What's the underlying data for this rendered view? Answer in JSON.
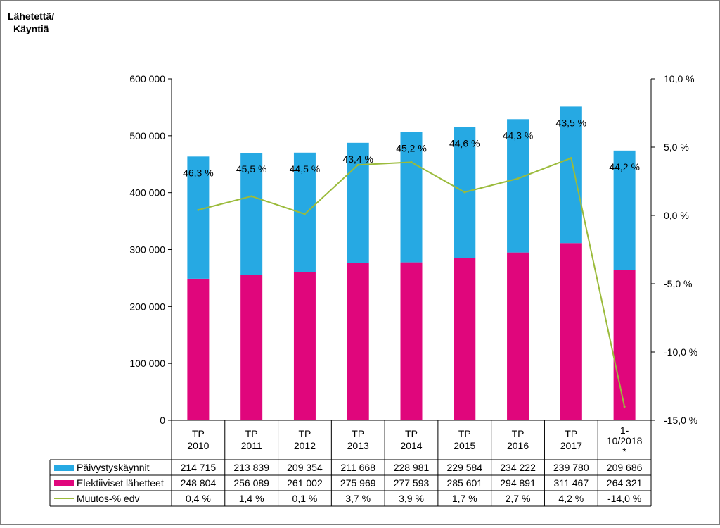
{
  "chart_data": {
    "type": "bar",
    "stacked": true,
    "left_axis_title": [
      "Lähetettä/",
      "Käyntiä"
    ],
    "categories": [
      [
        "TP",
        "2010"
      ],
      [
        "TP",
        "2011"
      ],
      [
        "TP",
        "2012"
      ],
      [
        "TP",
        "2013"
      ],
      [
        "TP",
        "2014"
      ],
      [
        "TP",
        "2015"
      ],
      [
        "TP",
        "2016"
      ],
      [
        "TP",
        "2017"
      ],
      [
        "1-",
        "10/2018",
        "*"
      ]
    ],
    "y_left": {
      "min": 0,
      "max": 600000,
      "ticks": [
        "0",
        "100 000",
        "200 000",
        "300 000",
        "400 000",
        "500 000",
        "600 000"
      ]
    },
    "y_right": {
      "min": -15,
      "max": 10,
      "ticks": [
        "-15,0 %",
        "-10,0 %",
        "-5,0 %",
        "0,0 %",
        "5,0 %",
        "10,0 %"
      ]
    },
    "series": [
      {
        "name": "Elektiiviset lähetteet",
        "kind": "bar",
        "color": "#e0067c",
        "values": [
          248804,
          256089,
          261002,
          275969,
          277593,
          285601,
          294891,
          311467,
          264321
        ],
        "labels": [
          "248 804",
          "256 089",
          "261 002",
          "275 969",
          "277 593",
          "285 601",
          "294 891",
          "311 467",
          "264 321"
        ]
      },
      {
        "name": "Päivystyskäynnit",
        "kind": "bar",
        "color": "#26a9e3",
        "values": [
          214715,
          213839,
          209354,
          211668,
          228981,
          229584,
          234222,
          239780,
          209686
        ],
        "labels": [
          "214 715",
          "213 839",
          "209 354",
          "211 668",
          "228 981",
          "229 584",
          "234 222",
          "239 780",
          "209 686"
        ]
      },
      {
        "name": "Muutos-% edv",
        "kind": "line",
        "axis": "right",
        "color": "#9bbb3b",
        "values": [
          0.4,
          1.4,
          0.1,
          3.7,
          3.9,
          1.7,
          2.7,
          4.2,
          -14.0
        ],
        "labels": [
          "0,4 %",
          "1,4 %",
          "0,1 %",
          "3,7 %",
          "3,9 %",
          "1,7 %",
          "2,7 %",
          "4,2 %",
          "-14,0 %"
        ]
      }
    ],
    "bar_annotations": [
      "46,3 %",
      "45,5 %",
      "44,5 %",
      "43,4 %",
      "45,2 %",
      "44,6 %",
      "44,3 %",
      "43,5 %",
      "44,2 %"
    ]
  }
}
